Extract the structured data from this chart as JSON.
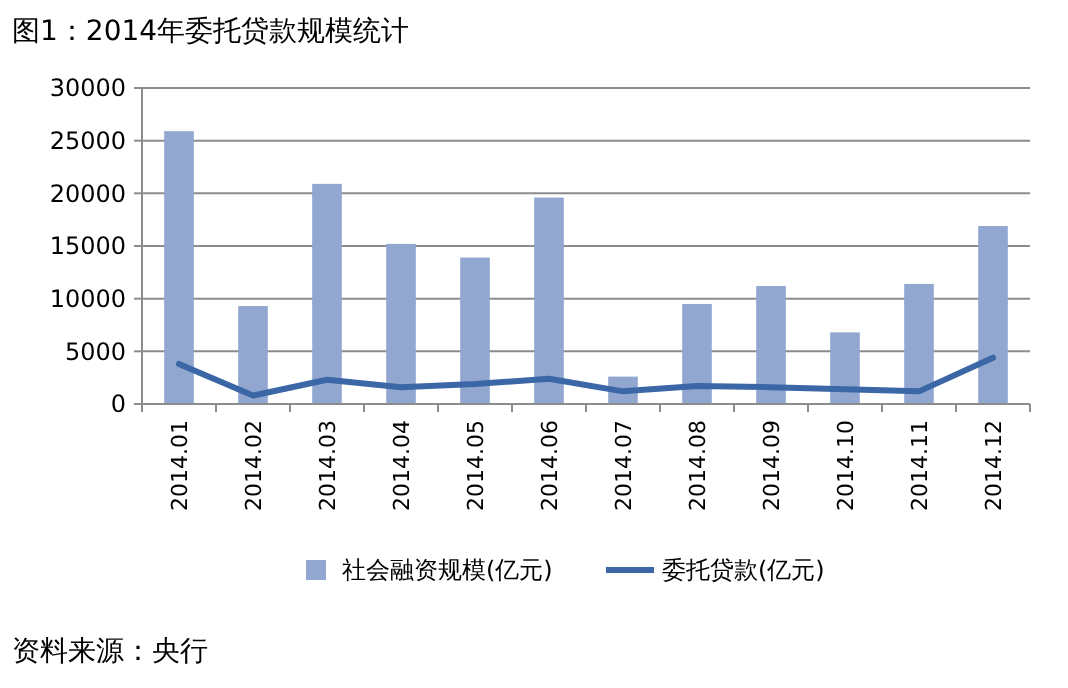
{
  "chart_data": {
    "type": "bar",
    "title": "图1：2014年委托贷款规模统计",
    "categories": [
      "2014.01",
      "2014.02",
      "2014.03",
      "2014.04",
      "2014.05",
      "2014.06",
      "2014.07",
      "2014.08",
      "2014.09",
      "2014.10",
      "2014.11",
      "2014.12"
    ],
    "series": [
      {
        "name": "社会融资规模(亿元)",
        "color": "#91a7d0",
        "values": [
          25900,
          9300,
          20900,
          15200,
          13900,
          19600,
          2600,
          9500,
          11200,
          6800,
          11400,
          16900
        ]
      },
      {
        "name": "委托贷款(亿元)",
        "type": "line",
        "color": "#3b67a6",
        "values": [
          3800,
          800,
          2300,
          1600,
          1900,
          2400,
          1200,
          1700,
          1600,
          1400,
          1200,
          4400
        ]
      }
    ],
    "ylim": [
      0,
      30000
    ],
    "yticks": [
      0,
      5000,
      10000,
      15000,
      20000,
      25000,
      30000
    ],
    "grid": "y",
    "legend": "bottom",
    "marker": "none",
    "annotations": [
      "资料来源：央行"
    ]
  }
}
